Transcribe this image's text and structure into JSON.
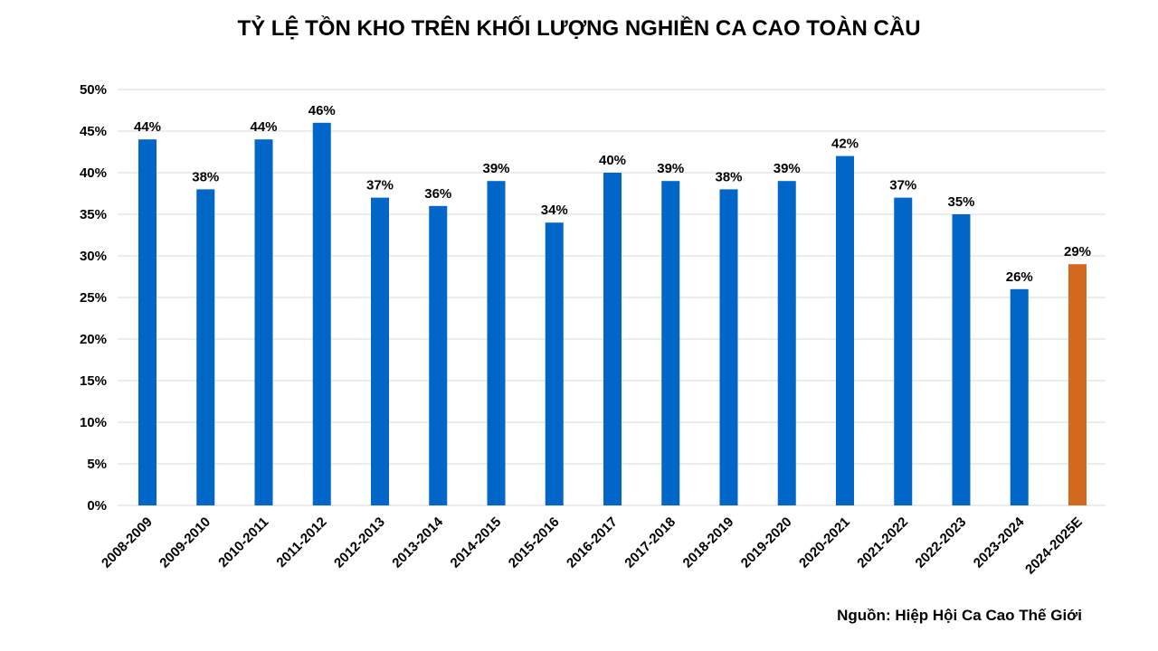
{
  "chart_data": {
    "type": "bar",
    "title": "TỶ LỆ TỒN KHO TRÊN KHỐI LƯỢNG NGHIỀN CA CAO TOÀN CẦU",
    "xlabel": "",
    "ylabel": "",
    "categories": [
      "2008-2009",
      "2009-2010",
      "2010-2011",
      "2011-2012",
      "2012-2013",
      "2013-2014",
      "2014-2015",
      "2015-2016",
      "2016-2017",
      "2017-2018",
      "2018-2019",
      "2019-2020",
      "2020-2021",
      "2021-2022",
      "2022-2023",
      "2023-2024",
      "2024-2025E"
    ],
    "values": [
      44,
      38,
      44,
      46,
      37,
      36,
      39,
      34,
      40,
      39,
      38,
      39,
      42,
      37,
      35,
      26,
      29
    ],
    "data_labels": [
      "44%",
      "38%",
      "44%",
      "46%",
      "37%",
      "36%",
      "39%",
      "34%",
      "40%",
      "39%",
      "38%",
      "39%",
      "42%",
      "37%",
      "35%",
      "26%",
      "29%"
    ],
    "ylim": [
      0,
      50
    ],
    "yticks": [
      0,
      5,
      10,
      15,
      20,
      25,
      30,
      35,
      40,
      45,
      50
    ],
    "ytick_labels": [
      "0%",
      "5%",
      "10%",
      "15%",
      "20%",
      "25%",
      "30%",
      "35%",
      "40%",
      "45%",
      "50%"
    ],
    "grid": true,
    "legend": "none",
    "colors": {
      "bar": "#0066c7",
      "highlight_bar": "#d2691e",
      "grid": "#d9d9d9"
    },
    "highlight_category": "2024-2025E"
  },
  "source": "Nguồn: Hiệp Hội Ca Cao Thế Giới"
}
